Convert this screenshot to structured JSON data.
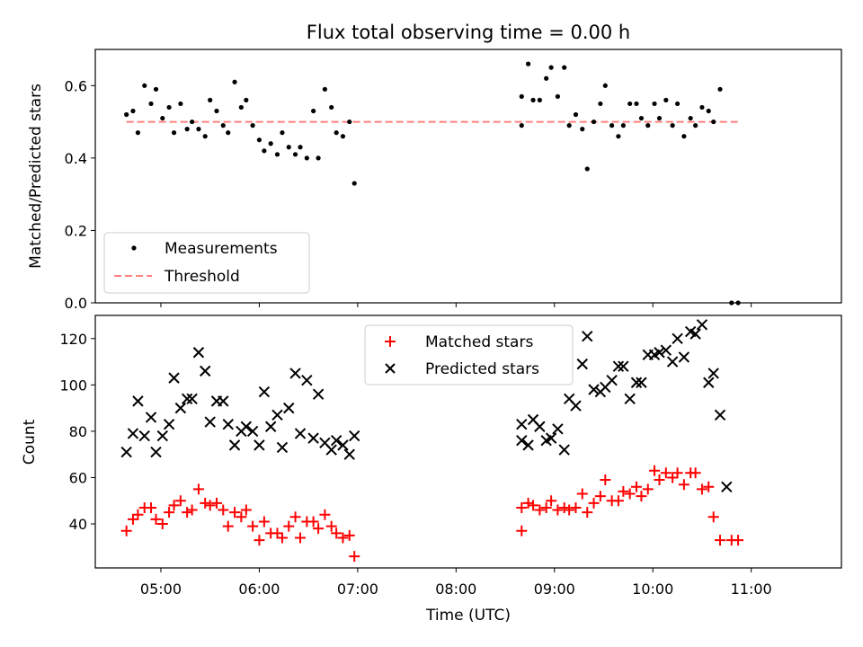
{
  "figure": {
    "title": "Flux total observing time = 0.00 h",
    "xlabel": "Time (UTC)"
  },
  "chart_data": [
    {
      "type": "scatter",
      "title": "Flux total observing time = 0.00 h",
      "ylabel": "Matched/Predicted stars",
      "xlim": [
        "04:20",
        "11:55"
      ],
      "ylim": [
        0,
        0.7
      ],
      "yticks": [
        "0.0",
        "0.2",
        "0.4",
        "0.6"
      ],
      "legend_position": "lower-left",
      "series": [
        {
          "name": "Measurements",
          "marker": "dot",
          "color": "#000000",
          "points": [
            [
              "04:39",
              0.52
            ],
            [
              "04:43",
              0.53
            ],
            [
              "04:46",
              0.47
            ],
            [
              "04:50",
              0.6
            ],
            [
              "04:54",
              0.55
            ],
            [
              "04:57",
              0.59
            ],
            [
              "05:01",
              0.51
            ],
            [
              "05:05",
              0.54
            ],
            [
              "05:08",
              0.47
            ],
            [
              "05:12",
              0.55
            ],
            [
              "05:16",
              0.48
            ],
            [
              "05:19",
              0.5
            ],
            [
              "05:23",
              0.48
            ],
            [
              "05:27",
              0.46
            ],
            [
              "05:30",
              0.56
            ],
            [
              "05:34",
              0.53
            ],
            [
              "05:38",
              0.49
            ],
            [
              "05:41",
              0.47
            ],
            [
              "05:45",
              0.61
            ],
            [
              "05:49",
              0.54
            ],
            [
              "05:52",
              0.56
            ],
            [
              "05:56",
              0.49
            ],
            [
              "06:00",
              0.45
            ],
            [
              "06:03",
              0.42
            ],
            [
              "06:07",
              0.44
            ],
            [
              "06:11",
              0.41
            ],
            [
              "06:14",
              0.47
            ],
            [
              "06:18",
              0.43
            ],
            [
              "06:22",
              0.41
            ],
            [
              "06:25",
              0.43
            ],
            [
              "06:29",
              0.4
            ],
            [
              "06:33",
              0.53
            ],
            [
              "06:36",
              0.4
            ],
            [
              "06:40",
              0.59
            ],
            [
              "06:44",
              0.54
            ],
            [
              "06:47",
              0.47
            ],
            [
              "06:51",
              0.46
            ],
            [
              "06:55",
              0.5
            ],
            [
              "06:58",
              0.33
            ],
            [
              "08:40",
              0.49
            ],
            [
              "08:40",
              0.57
            ],
            [
              "08:44",
              0.66
            ],
            [
              "08:47",
              0.56
            ],
            [
              "08:51",
              0.56
            ],
            [
              "08:55",
              0.62
            ],
            [
              "08:58",
              0.65
            ],
            [
              "09:02",
              0.57
            ],
            [
              "09:06",
              0.65
            ],
            [
              "09:09",
              0.49
            ],
            [
              "09:13",
              0.52
            ],
            [
              "09:17",
              0.48
            ],
            [
              "09:20",
              0.37
            ],
            [
              "09:24",
              0.5
            ],
            [
              "09:28",
              0.55
            ],
            [
              "09:31",
              0.6
            ],
            [
              "09:35",
              0.49
            ],
            [
              "09:39",
              0.46
            ],
            [
              "09:42",
              0.49
            ],
            [
              "09:46",
              0.55
            ],
            [
              "09:50",
              0.55
            ],
            [
              "09:53",
              0.51
            ],
            [
              "09:57",
              0.49
            ],
            [
              "10:01",
              0.55
            ],
            [
              "10:04",
              0.51
            ],
            [
              "10:08",
              0.56
            ],
            [
              "10:12",
              0.49
            ],
            [
              "10:15",
              0.55
            ],
            [
              "10:19",
              0.46
            ],
            [
              "10:23",
              0.51
            ],
            [
              "10:26",
              0.49
            ],
            [
              "10:30",
              0.54
            ],
            [
              "10:34",
              0.53
            ],
            [
              "10:37",
              0.5
            ],
            [
              "10:41",
              0.59
            ],
            [
              "10:48",
              0.0
            ],
            [
              "10:52",
              0.0
            ]
          ]
        },
        {
          "name": "Threshold",
          "line": "dashed",
          "color": "#ff7f7f",
          "points": [
            [
              "04:39",
              0.5
            ],
            [
              "10:52",
              0.5
            ]
          ]
        }
      ]
    },
    {
      "type": "scatter",
      "ylabel": "Count",
      "xlabel": "Time (UTC)",
      "xlim": [
        "04:20",
        "11:55"
      ],
      "ylim": [
        21,
        130
      ],
      "yticks": [
        "40",
        "60",
        "80",
        "100",
        "120"
      ],
      "xticks": [
        "05:00",
        "06:00",
        "07:00",
        "08:00",
        "09:00",
        "10:00",
        "11:00"
      ],
      "legend_position": "upper-center",
      "series": [
        {
          "name": "Matched stars",
          "marker": "plus",
          "color": "#ff0000",
          "points": [
            [
              "04:39",
              37
            ],
            [
              "04:43",
              42
            ],
            [
              "04:46",
              44
            ],
            [
              "04:50",
              47
            ],
            [
              "04:54",
              47
            ],
            [
              "04:57",
              42
            ],
            [
              "05:01",
              40
            ],
            [
              "05:05",
              45
            ],
            [
              "05:08",
              48
            ],
            [
              "05:12",
              50
            ],
            [
              "05:16",
              45
            ],
            [
              "05:19",
              46
            ],
            [
              "05:23",
              55
            ],
            [
              "05:27",
              49
            ],
            [
              "05:30",
              48
            ],
            [
              "05:34",
              49
            ],
            [
              "05:38",
              46
            ],
            [
              "05:41",
              39
            ],
            [
              "05:45",
              45
            ],
            [
              "05:49",
              43
            ],
            [
              "05:52",
              46
            ],
            [
              "05:56",
              39
            ],
            [
              "06:00",
              33
            ],
            [
              "06:03",
              41
            ],
            [
              "06:07",
              36
            ],
            [
              "06:11",
              36
            ],
            [
              "06:14",
              34
            ],
            [
              "06:18",
              39
            ],
            [
              "06:22",
              43
            ],
            [
              "06:25",
              34
            ],
            [
              "06:29",
              41
            ],
            [
              "06:33",
              41
            ],
            [
              "06:36",
              38
            ],
            [
              "06:40",
              44
            ],
            [
              "06:44",
              39
            ],
            [
              "06:47",
              36
            ],
            [
              "06:51",
              34
            ],
            [
              "06:55",
              35
            ],
            [
              "06:58",
              26
            ],
            [
              "08:40",
              37
            ],
            [
              "08:40",
              47
            ],
            [
              "08:44",
              49
            ],
            [
              "08:47",
              48
            ],
            [
              "08:51",
              46
            ],
            [
              "08:55",
              47
            ],
            [
              "08:58",
              50
            ],
            [
              "09:02",
              46
            ],
            [
              "09:06",
              47
            ],
            [
              "09:09",
              46
            ],
            [
              "09:13",
              47
            ],
            [
              "09:17",
              53
            ],
            [
              "09:20",
              45
            ],
            [
              "09:24",
              49
            ],
            [
              "09:28",
              52
            ],
            [
              "09:31",
              59
            ],
            [
              "09:35",
              50
            ],
            [
              "09:39",
              50
            ],
            [
              "09:42",
              54
            ],
            [
              "09:46",
              53
            ],
            [
              "09:50",
              56
            ],
            [
              "09:53",
              52
            ],
            [
              "09:57",
              55
            ],
            [
              "10:01",
              63
            ],
            [
              "10:04",
              59
            ],
            [
              "10:08",
              62
            ],
            [
              "10:12",
              60
            ],
            [
              "10:15",
              62
            ],
            [
              "10:19",
              57
            ],
            [
              "10:23",
              62
            ],
            [
              "10:26",
              62
            ],
            [
              "10:30",
              55
            ],
            [
              "10:34",
              56
            ],
            [
              "10:37",
              43
            ],
            [
              "10:41",
              33
            ],
            [
              "10:48",
              33
            ],
            [
              "10:52",
              33
            ]
          ]
        },
        {
          "name": "Predicted stars",
          "marker": "x",
          "color": "#000000",
          "points": [
            [
              "04:39",
              71
            ],
            [
              "04:43",
              79
            ],
            [
              "04:46",
              93
            ],
            [
              "04:50",
              78
            ],
            [
              "04:54",
              86
            ],
            [
              "04:57",
              71
            ],
            [
              "05:01",
              78
            ],
            [
              "05:05",
              83
            ],
            [
              "05:08",
              103
            ],
            [
              "05:12",
              90
            ],
            [
              "05:16",
              94
            ],
            [
              "05:19",
              94
            ],
            [
              "05:23",
              114
            ],
            [
              "05:27",
              106
            ],
            [
              "05:30",
              84
            ],
            [
              "05:34",
              93
            ],
            [
              "05:38",
              93
            ],
            [
              "05:41",
              83
            ],
            [
              "05:45",
              74
            ],
            [
              "05:49",
              80
            ],
            [
              "05:52",
              82
            ],
            [
              "05:56",
              80
            ],
            [
              "06:00",
              74
            ],
            [
              "06:03",
              97
            ],
            [
              "06:07",
              82
            ],
            [
              "06:11",
              87
            ],
            [
              "06:14",
              73
            ],
            [
              "06:18",
              90
            ],
            [
              "06:22",
              105
            ],
            [
              "06:25",
              79
            ],
            [
              "06:29",
              102
            ],
            [
              "06:33",
              77
            ],
            [
              "06:36",
              96
            ],
            [
              "06:40",
              75
            ],
            [
              "06:44",
              72
            ],
            [
              "06:47",
              76
            ],
            [
              "06:51",
              74
            ],
            [
              "06:55",
              70
            ],
            [
              "06:58",
              78
            ],
            [
              "08:40",
              76
            ],
            [
              "08:40",
              83
            ],
            [
              "08:44",
              74
            ],
            [
              "08:47",
              85
            ],
            [
              "08:51",
              82
            ],
            [
              "08:55",
              76
            ],
            [
              "08:58",
              77
            ],
            [
              "09:02",
              81
            ],
            [
              "09:06",
              72
            ],
            [
              "09:09",
              94
            ],
            [
              "09:13",
              91
            ],
            [
              "09:17",
              109
            ],
            [
              "09:20",
              121
            ],
            [
              "09:24",
              98
            ],
            [
              "09:28",
              97
            ],
            [
              "09:31",
              99
            ],
            [
              "09:35",
              102
            ],
            [
              "09:39",
              108
            ],
            [
              "09:42",
              108
            ],
            [
              "09:46",
              94
            ],
            [
              "09:50",
              101
            ],
            [
              "09:53",
              101
            ],
            [
              "09:57",
              113
            ],
            [
              "10:01",
              113
            ],
            [
              "10:04",
              114
            ],
            [
              "10:08",
              115
            ],
            [
              "10:12",
              110
            ],
            [
              "10:15",
              120
            ],
            [
              "10:19",
              112
            ],
            [
              "10:23",
              123
            ],
            [
              "10:26",
              122
            ],
            [
              "10:30",
              126
            ],
            [
              "10:34",
              101
            ],
            [
              "10:37",
              105
            ],
            [
              "10:41",
              87
            ],
            [
              "10:45",
              56
            ]
          ]
        }
      ]
    }
  ]
}
